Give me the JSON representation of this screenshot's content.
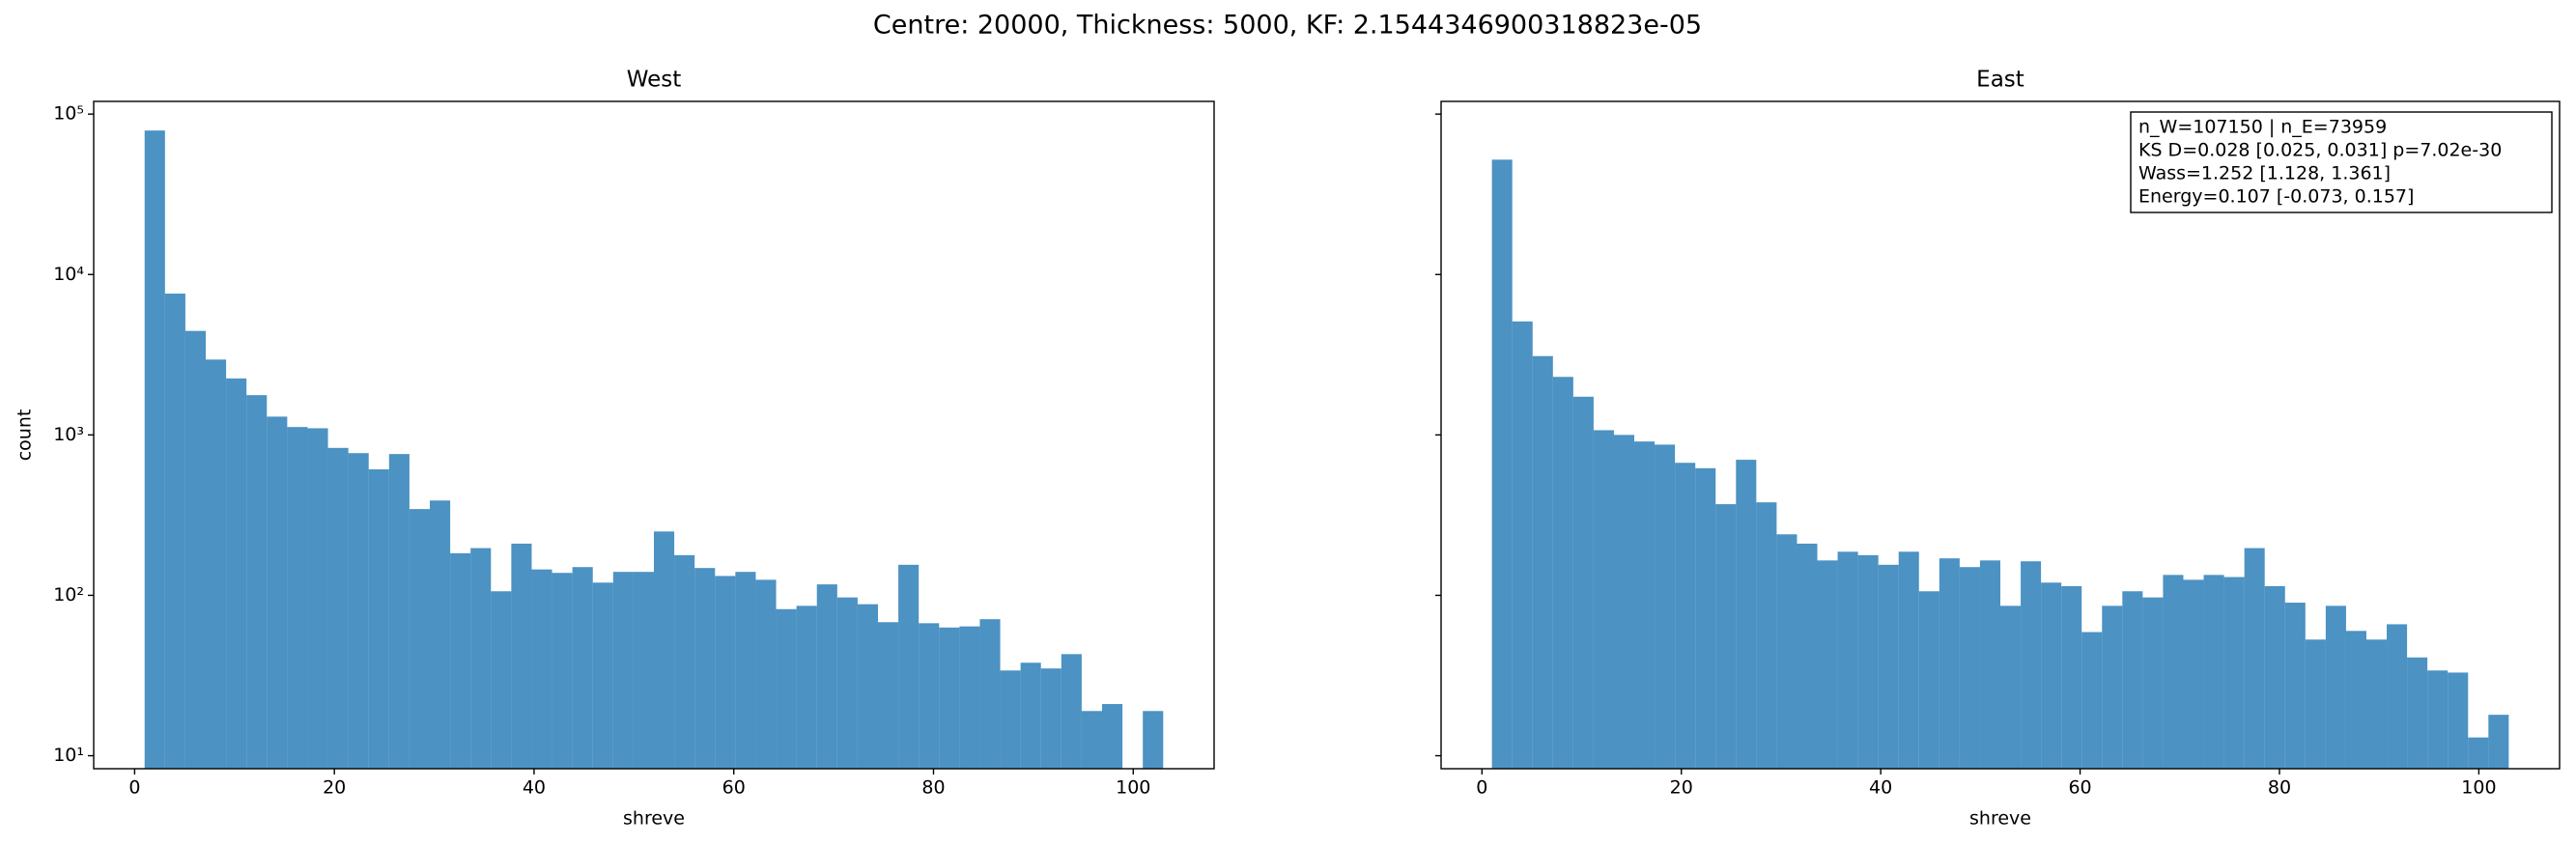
{
  "title": "Centre: 20000, Thickness: 5000, KF: 2.1544346900318823e-05",
  "chart_data": [
    {
      "type": "histogram",
      "title": "West",
      "x_label": "shreve",
      "y_label": "count",
      "color": "#1f77b4",
      "alpha": 0.8,
      "yscale": "log",
      "bins": [
        1,
        3.04,
        5.08,
        7.12,
        9.16,
        11.2,
        13.24,
        15.28,
        17.32,
        19.36,
        21.4,
        23.44,
        25.48,
        27.52,
        29.56,
        31.6,
        33.64,
        35.68,
        37.72,
        39.76,
        41.8,
        43.84,
        45.88,
        47.92,
        49.96,
        52,
        54.04,
        56.08,
        58.12,
        60.16,
        62.2,
        64.24,
        66.28,
        68.32,
        70.36,
        72.4,
        74.44,
        76.48,
        78.52,
        80.56,
        82.6,
        84.64,
        86.68,
        88.72,
        90.76,
        92.8,
        94.84,
        96.88,
        98.92,
        100.96,
        103
      ],
      "values": [
        79000,
        7600,
        4450,
        2950,
        2250,
        1770,
        1300,
        1120,
        1100,
        830,
        770,
        610,
        760,
        345,
        390,
        183,
        197,
        106,
        210,
        145,
        138,
        150,
        120,
        140,
        140,
        250,
        178,
        148,
        132,
        140,
        125,
        82,
        86,
        117,
        97,
        88,
        68,
        155,
        67,
        63,
        64,
        71,
        34,
        38,
        35,
        43,
        19,
        21,
        0,
        19
      ],
      "xlim": [
        -4.1,
        108.1
      ],
      "xticks": [
        0,
        20,
        40,
        60,
        80,
        100
      ],
      "ylim": [
        8.3,
        120000
      ],
      "yticks": [
        {
          "value": 10,
          "label": "10¹"
        },
        {
          "value": 100,
          "label": "10²"
        },
        {
          "value": 1000,
          "label": "10³"
        },
        {
          "value": 10000,
          "label": "10⁴"
        },
        {
          "value": 100000,
          "label": "10⁵"
        }
      ]
    },
    {
      "type": "histogram",
      "title": "East",
      "x_label": "shreve",
      "color": "#1f77b4",
      "alpha": 0.8,
      "yscale": "log",
      "bins": [
        1,
        3.04,
        5.08,
        7.12,
        9.16,
        11.2,
        13.24,
        15.28,
        17.32,
        19.36,
        21.4,
        23.44,
        25.48,
        27.52,
        29.56,
        31.6,
        33.64,
        35.68,
        37.72,
        39.76,
        41.8,
        43.84,
        45.88,
        47.92,
        49.96,
        52,
        54.04,
        56.08,
        58.12,
        60.16,
        62.2,
        64.24,
        66.28,
        68.32,
        70.36,
        72.4,
        74.44,
        76.48,
        78.52,
        80.56,
        82.6,
        84.64,
        86.68,
        88.72,
        90.76,
        92.8,
        94.84,
        96.88,
        98.92,
        100.96,
        103
      ],
      "values": [
        52000,
        5100,
        3100,
        2300,
        1730,
        1070,
        1000,
        910,
        870,
        670,
        620,
        370,
        700,
        380,
        240,
        210,
        165,
        187,
        178,
        155,
        187,
        106,
        170,
        150,
        165,
        86,
        163,
        120,
        114,
        59,
        86,
        106,
        97,
        134,
        125,
        134,
        130,
        197,
        114,
        90,
        53,
        86,
        60,
        53,
        66,
        41,
        34,
        33,
        13,
        18
      ],
      "xlim": [
        -4.1,
        108.1
      ],
      "xticks": [
        0,
        20,
        40,
        60,
        80,
        100
      ],
      "ylim": [
        8.3,
        120000
      ],
      "annotation_lines": [
        "n_W=107150 | n_E=73959",
        "KS D=0.028 [0.025, 0.031]  p=7.02e-30",
        "Wass=1.252 [1.128, 1.361]",
        "Energy=0.107 [-0.073, 0.157]"
      ]
    }
  ]
}
